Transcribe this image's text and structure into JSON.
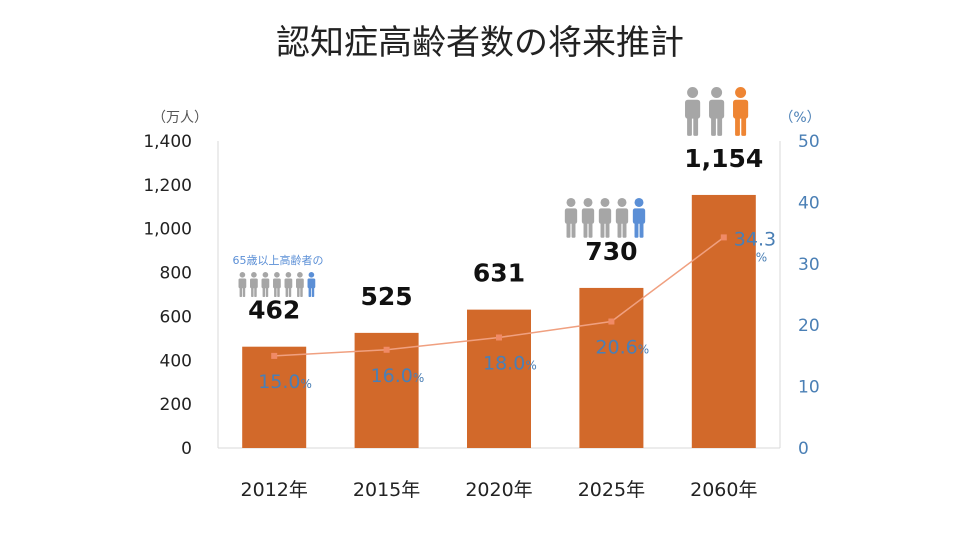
{
  "chart_data": {
    "type": "bar",
    "title": "認知症高齢者数の将来推計",
    "categories": [
      "2012年",
      "2015年",
      "2020年",
      "2025年",
      "2060年"
    ],
    "series": [
      {
        "values": [
          462,
          525,
          631,
          730,
          1154
        ]
      },
      {
        "values": [
          15.0,
          16.0,
          18.0,
          20.6,
          34.3
        ]
      }
    ],
    "bar_labels": [
      "462",
      "525",
      "631",
      "730",
      "1,154"
    ],
    "line_labels": [
      "15.0",
      "16.0",
      "18.0",
      "20.6",
      "34.3"
    ],
    "line_label_suffix": "%",
    "y_left": {
      "unit": "（万人）",
      "range": [
        0,
        1400
      ],
      "ticks": [
        "0",
        "200",
        "400",
        "600",
        "800",
        "1,000",
        "1,200",
        "1,400"
      ]
    },
    "y_right": {
      "unit": "（%）",
      "range": [
        0,
        50
      ],
      "ticks": [
        "0",
        "10",
        "20",
        "30",
        "40",
        "50"
      ]
    },
    "annotation": "65歳以上高齢者の",
    "icon_groups": [
      {
        "category": "2012年",
        "icon": "person-icon",
        "count": 7,
        "highlighted": 1
      },
      {
        "category": "2025年",
        "icon": "person-icon",
        "count": 5,
        "highlighted": 1
      },
      {
        "category": "2060年",
        "icon": "person-icon",
        "count": 3,
        "highlighted": 1
      }
    ],
    "colors": {
      "bar": "#d2692a",
      "line": "#f0a080",
      "line_marker": "#f08a66",
      "right_axis": "#4a7fb5",
      "person_gray": "#a6a6a6",
      "person_blue": "#5b8fd6",
      "person_orange": "#ee8533"
    }
  }
}
